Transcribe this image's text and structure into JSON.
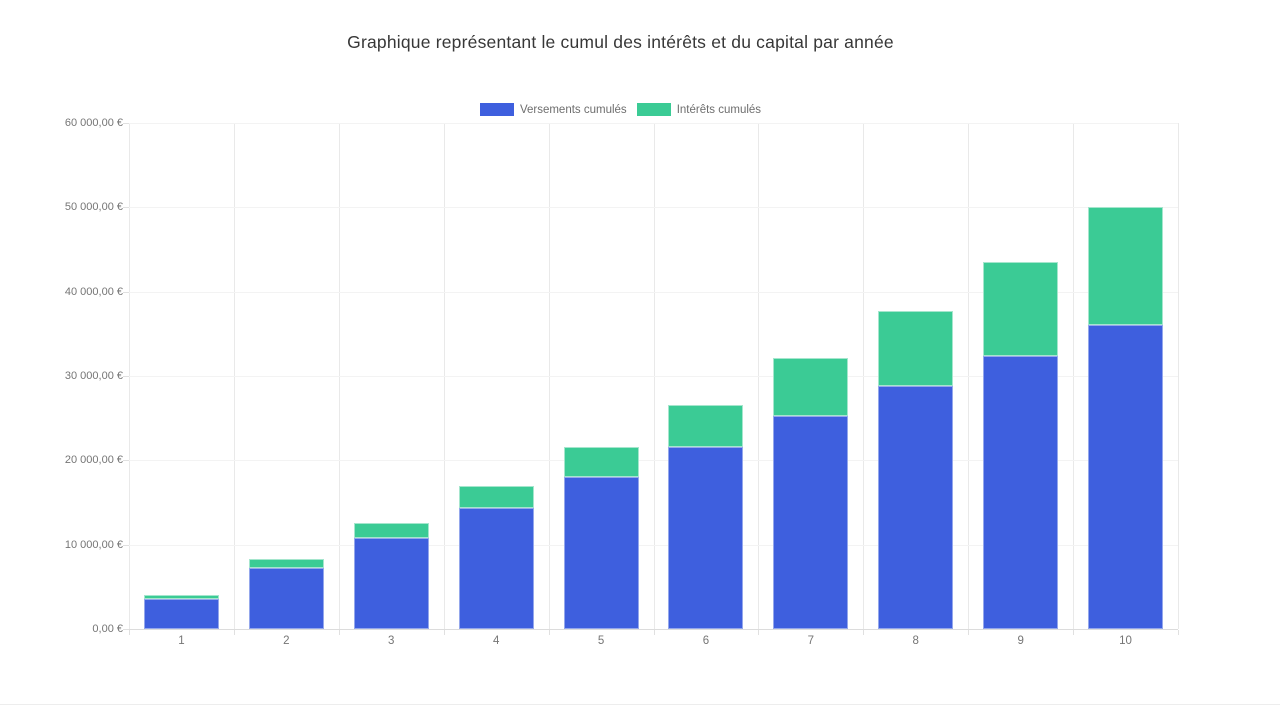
{
  "title": "Graphique représentant le cumul des intérêts et du capital par année",
  "colors": {
    "versements_fill": "#3e5fde",
    "versements_border": "#94a7ec",
    "interets_fill": "#3bcb95",
    "interets_border": "#a5e6cd",
    "grid_vertical": "#e9e9e9",
    "grid_horizontal": "#f3f3f3",
    "axis_line": "#dcdcdc",
    "tick_text": "#757575",
    "title_text": "#373737"
  },
  "legend": {
    "items": [
      {
        "label": "Versements cumulés",
        "color": "#3e5fde"
      },
      {
        "label": "Intérêts cumulés",
        "color": "#3bcb95"
      }
    ]
  },
  "chart_data": {
    "type": "bar",
    "stacked": true,
    "title": "Graphique représentant le cumul des intérêts et du capital par année",
    "xlabel": "",
    "ylabel": "",
    "categories": [
      "1",
      "2",
      "3",
      "4",
      "5",
      "6",
      "7",
      "8",
      "9",
      "10"
    ],
    "series": [
      {
        "name": "Versements cumulés",
        "color": "#3e5fde",
        "border_color": "#94a7ec",
        "values": [
          3600,
          7200,
          10800,
          14400,
          18000,
          21600,
          25200,
          28800,
          32400,
          36000
        ]
      },
      {
        "name": "Intérêts cumulés",
        "color": "#3bcb95",
        "border_color": "#a5e6cd",
        "values": [
          420,
          1150,
          1800,
          2500,
          3550,
          5000,
          6950,
          8950,
          11150,
          14100
        ]
      }
    ],
    "stack_totals": [
      4020,
      8350,
      12600,
      16900,
      21550,
      26600,
      32150,
      37750,
      43550,
      50100
    ],
    "ylim": [
      0,
      60000
    ],
    "y_tick_values": [
      0,
      10000,
      20000,
      30000,
      40000,
      50000,
      60000
    ],
    "y_tick_labels": [
      "0,00 €",
      "10 000,00 €",
      "20 000,00 €",
      "30 000,00 €",
      "40 000,00 €",
      "50 000,00 €",
      "60 000,00 €"
    ],
    "grid": true,
    "legend_position": "top"
  }
}
